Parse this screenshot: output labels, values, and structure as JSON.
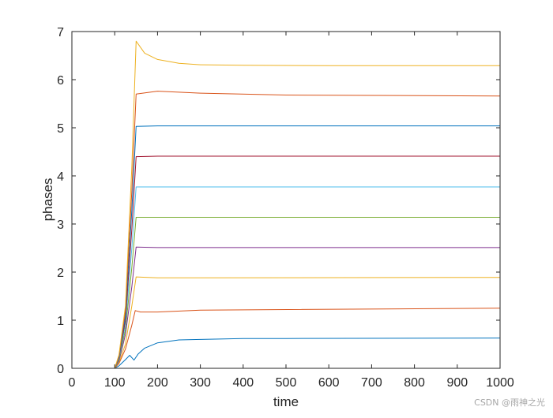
{
  "chart_data": {
    "type": "line",
    "title": "",
    "xlabel": "time",
    "ylabel": "phases",
    "xlim": [
      0,
      1000
    ],
    "ylim": [
      0,
      7
    ],
    "xticks": [
      0,
      100,
      200,
      300,
      400,
      500,
      600,
      700,
      800,
      900,
      1000
    ],
    "yticks": [
      0,
      1,
      2,
      3,
      4,
      5,
      6,
      7
    ],
    "grid": false,
    "legend": "none",
    "series": [
      {
        "color": "#0072BD",
        "x": [
          0,
          100,
          110,
          125,
          135,
          145,
          155,
          170,
          200,
          250,
          300,
          400,
          500,
          1000
        ],
        "y": [
          0,
          0,
          0.05,
          0.18,
          0.27,
          0.17,
          0.3,
          0.42,
          0.53,
          0.59,
          0.6,
          0.62,
          0.62,
          0.63
        ]
      },
      {
        "color": "#D95319",
        "x": [
          0,
          100,
          110,
          125,
          140,
          148,
          160,
          200,
          300,
          1000
        ],
        "y": [
          0,
          0,
          0.1,
          0.4,
          0.9,
          1.2,
          1.17,
          1.17,
          1.21,
          1.25
        ]
      },
      {
        "color": "#EDB120",
        "x": [
          0,
          100,
          110,
          125,
          140,
          150,
          200,
          300,
          1000
        ],
        "y": [
          0,
          0,
          0.12,
          0.5,
          1.3,
          1.9,
          1.88,
          1.88,
          1.89
        ]
      },
      {
        "color": "#7E2F8E",
        "x": [
          0,
          100,
          110,
          125,
          140,
          150,
          200,
          400,
          1000
        ],
        "y": [
          0,
          0,
          0.15,
          0.7,
          1.7,
          2.52,
          2.51,
          2.51,
          2.51
        ]
      },
      {
        "color": "#77AC30",
        "x": [
          0,
          100,
          110,
          125,
          140,
          150,
          200,
          400,
          1000
        ],
        "y": [
          0,
          0,
          0.18,
          0.8,
          2.1,
          3.14,
          3.14,
          3.14,
          3.14
        ]
      },
      {
        "color": "#4DBEEE",
        "x": [
          0,
          100,
          110,
          125,
          140,
          150,
          200,
          400,
          1000
        ],
        "y": [
          0,
          0,
          0.2,
          0.9,
          2.5,
          3.77,
          3.77,
          3.77,
          3.77
        ]
      },
      {
        "color": "#A2142F",
        "x": [
          0,
          100,
          110,
          125,
          140,
          150,
          200,
          400,
          1000
        ],
        "y": [
          0,
          0,
          0.22,
          1.0,
          2.9,
          4.4,
          4.41,
          4.41,
          4.41
        ]
      },
      {
        "color": "#0072BD",
        "x": [
          0,
          100,
          110,
          125,
          140,
          150,
          200,
          400,
          1000
        ],
        "y": [
          0,
          0,
          0.24,
          1.1,
          3.3,
          5.03,
          5.04,
          5.04,
          5.04
        ]
      },
      {
        "color": "#D95319",
        "x": [
          0,
          100,
          110,
          125,
          140,
          150,
          200,
          300,
          500,
          1000
        ],
        "y": [
          0,
          0,
          0.26,
          1.2,
          3.7,
          5.7,
          5.76,
          5.72,
          5.68,
          5.66
        ]
      },
      {
        "color": "#EDB120",
        "x": [
          0,
          100,
          110,
          125,
          140,
          150,
          170,
          200,
          250,
          300,
          400,
          600,
          1000
        ],
        "y": [
          0,
          0,
          0.28,
          1.3,
          4.2,
          6.8,
          6.55,
          6.42,
          6.34,
          6.31,
          6.3,
          6.29,
          6.29
        ]
      }
    ]
  },
  "watermark": "CSDN @雨神之光"
}
